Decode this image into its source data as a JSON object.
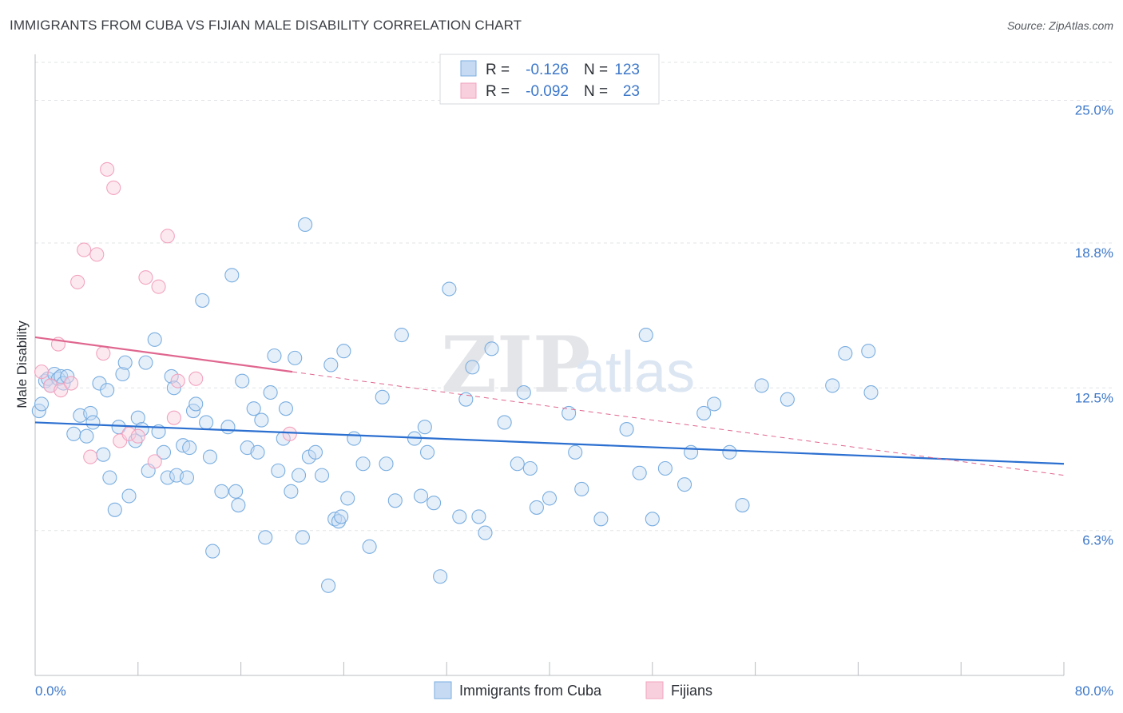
{
  "title": "IMMIGRANTS FROM CUBA VS FIJIAN MALE DISABILITY CORRELATION CHART",
  "source": "Source: ZipAtlas.com",
  "watermark": {
    "zip": "ZIP",
    "atlas": "atlas"
  },
  "chart_data": {
    "type": "scatter",
    "xlabel": "",
    "ylabel": "Male Disability",
    "xlim": [
      0,
      80
    ],
    "ylim": [
      0,
      27
    ],
    "x_tick_labels": [
      "0.0%",
      "80.0%"
    ],
    "y_ticks": [
      6.3,
      12.5,
      18.8,
      25.0
    ],
    "y_tick_labels": [
      "6.3%",
      "12.5%",
      "18.8%",
      "25.0%"
    ],
    "legend": {
      "rows": [
        {
          "r_label": "R =",
          "r_value": "-0.126",
          "n_label": "N =",
          "n_value": "123"
        },
        {
          "r_label": "R =",
          "r_value": "-0.092",
          "n_label": "N =",
          "n_value": "23"
        }
      ]
    },
    "series": [
      {
        "name": "Immigrants from Cuba",
        "color": "#7aaee0",
        "line_color": "#2b6fd0",
        "trend": {
          "x": [
            0,
            80
          ],
          "y": [
            11.0,
            9.2
          ]
        },
        "points": [
          [
            0.3,
            11.5
          ],
          [
            0.5,
            11.8
          ],
          [
            0.8,
            12.8
          ],
          [
            1.0,
            12.9
          ],
          [
            1.2,
            12.6
          ],
          [
            1.5,
            13.1
          ],
          [
            1.8,
            12.9
          ],
          [
            2.0,
            13.0
          ],
          [
            2.2,
            12.7
          ],
          [
            2.5,
            13.0
          ],
          [
            3.0,
            10.5
          ],
          [
            3.5,
            11.3
          ],
          [
            4.0,
            10.4
          ],
          [
            4.3,
            11.4
          ],
          [
            4.5,
            11.0
          ],
          [
            5.0,
            12.7
          ],
          [
            5.3,
            9.6
          ],
          [
            5.6,
            12.4
          ],
          [
            5.8,
            8.6
          ],
          [
            6.2,
            7.2
          ],
          [
            6.5,
            10.8
          ],
          [
            6.8,
            13.1
          ],
          [
            7.0,
            13.6
          ],
          [
            7.3,
            7.8
          ],
          [
            7.8,
            10.2
          ],
          [
            8.0,
            11.2
          ],
          [
            8.3,
            10.7
          ],
          [
            8.6,
            13.6
          ],
          [
            8.8,
            8.9
          ],
          [
            9.3,
            14.6
          ],
          [
            9.6,
            10.6
          ],
          [
            10.0,
            9.7
          ],
          [
            10.3,
            8.6
          ],
          [
            10.6,
            13.0
          ],
          [
            10.8,
            12.5
          ],
          [
            11.0,
            8.7
          ],
          [
            11.5,
            10.0
          ],
          [
            11.8,
            8.6
          ],
          [
            12.0,
            9.9
          ],
          [
            12.3,
            11.5
          ],
          [
            12.5,
            11.8
          ],
          [
            13.0,
            16.3
          ],
          [
            13.3,
            11.0
          ],
          [
            13.6,
            9.5
          ],
          [
            13.8,
            5.4
          ],
          [
            14.5,
            8.0
          ],
          [
            15.0,
            10.8
          ],
          [
            15.3,
            17.4
          ],
          [
            15.6,
            8.0
          ],
          [
            15.8,
            7.4
          ],
          [
            16.1,
            12.8
          ],
          [
            16.5,
            9.9
          ],
          [
            17.0,
            11.6
          ],
          [
            17.3,
            9.7
          ],
          [
            17.6,
            11.1
          ],
          [
            17.9,
            6.0
          ],
          [
            18.3,
            12.3
          ],
          [
            18.6,
            13.9
          ],
          [
            18.9,
            8.9
          ],
          [
            19.3,
            10.3
          ],
          [
            19.5,
            11.6
          ],
          [
            19.9,
            8.0
          ],
          [
            20.2,
            13.8
          ],
          [
            20.5,
            8.7
          ],
          [
            20.8,
            6.0
          ],
          [
            21.0,
            19.6
          ],
          [
            21.3,
            9.5
          ],
          [
            21.8,
            9.7
          ],
          [
            22.3,
            8.7
          ],
          [
            22.8,
            3.9
          ],
          [
            23.0,
            13.5
          ],
          [
            23.3,
            6.8
          ],
          [
            23.6,
            6.7
          ],
          [
            23.8,
            6.9
          ],
          [
            24.0,
            14.1
          ],
          [
            24.3,
            7.7
          ],
          [
            24.8,
            10.3
          ],
          [
            25.5,
            9.2
          ],
          [
            26.0,
            5.6
          ],
          [
            27.0,
            12.1
          ],
          [
            27.3,
            9.2
          ],
          [
            28.0,
            7.6
          ],
          [
            28.5,
            14.8
          ],
          [
            29.5,
            10.3
          ],
          [
            30.0,
            7.8
          ],
          [
            30.3,
            10.8
          ],
          [
            30.5,
            9.7
          ],
          [
            31.0,
            7.5
          ],
          [
            31.5,
            4.3
          ],
          [
            32.2,
            16.8
          ],
          [
            33.0,
            6.9
          ],
          [
            33.5,
            12.0
          ],
          [
            34.0,
            13.4
          ],
          [
            34.5,
            6.9
          ],
          [
            35.0,
            6.2
          ],
          [
            35.5,
            14.2
          ],
          [
            36.5,
            11.0
          ],
          [
            37.5,
            9.2
          ],
          [
            38.0,
            12.3
          ],
          [
            38.5,
            9.0
          ],
          [
            39.0,
            7.3
          ],
          [
            40.0,
            7.7
          ],
          [
            41.5,
            11.4
          ],
          [
            42.0,
            9.7
          ],
          [
            42.5,
            8.1
          ],
          [
            44.0,
            6.8
          ],
          [
            46.0,
            10.7
          ],
          [
            47.0,
            8.8
          ],
          [
            47.5,
            14.8
          ],
          [
            48.0,
            6.8
          ],
          [
            49.0,
            9.0
          ],
          [
            50.5,
            8.3
          ],
          [
            51.0,
            9.7
          ],
          [
            52.0,
            11.4
          ],
          [
            52.8,
            11.8
          ],
          [
            54.0,
            9.7
          ],
          [
            55.0,
            7.4
          ],
          [
            56.5,
            12.6
          ],
          [
            58.5,
            12.0
          ],
          [
            62.0,
            12.6
          ],
          [
            63.0,
            14.0
          ],
          [
            64.8,
            14.1
          ],
          [
            65.0,
            12.3
          ]
        ]
      },
      {
        "name": "Fijians",
        "color": "#f2a3bf",
        "line_color": "#e0678f",
        "trend": {
          "x": [
            0,
            20
          ],
          "y": [
            14.7,
            13.2
          ]
        },
        "trend_ext": {
          "x": [
            20,
            80
          ],
          "y": [
            13.2,
            8.7
          ]
        },
        "points": [
          [
            0.5,
            13.2
          ],
          [
            1.2,
            12.6
          ],
          [
            1.8,
            14.4
          ],
          [
            2.0,
            12.4
          ],
          [
            2.8,
            12.7
          ],
          [
            3.3,
            17.1
          ],
          [
            3.8,
            18.5
          ],
          [
            4.3,
            9.5
          ],
          [
            4.8,
            18.3
          ],
          [
            5.3,
            14.0
          ],
          [
            5.6,
            22.0
          ],
          [
            6.1,
            21.2
          ],
          [
            6.6,
            10.2
          ],
          [
            7.3,
            10.5
          ],
          [
            8.0,
            10.4
          ],
          [
            8.6,
            17.3
          ],
          [
            9.3,
            9.3
          ],
          [
            9.6,
            16.9
          ],
          [
            10.3,
            19.1
          ],
          [
            10.8,
            11.2
          ],
          [
            11.1,
            12.8
          ],
          [
            12.5,
            12.9
          ],
          [
            19.8,
            10.5
          ]
        ]
      }
    ]
  }
}
